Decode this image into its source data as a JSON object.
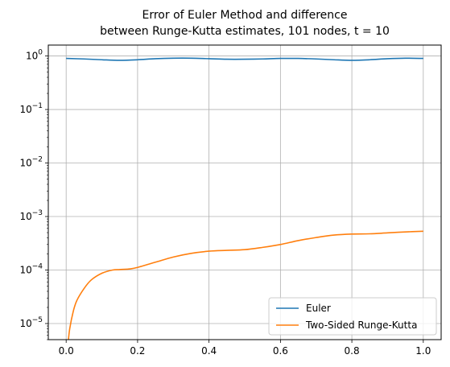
{
  "chart_data": {
    "type": "line",
    "title_lines": [
      "Error of Euler Method and difference",
      "between Runge-Kutta estimates, 101 nodes, t = 10"
    ],
    "xlabel": "",
    "ylabel": "",
    "yscale": "log",
    "xlim": [
      -0.05,
      1.05
    ],
    "ylim": [
      5e-06,
      1.6
    ],
    "xticks": [
      0.0,
      0.2,
      0.4,
      0.6,
      0.8,
      1.0
    ],
    "xtick_labels": [
      "0.0",
      "0.2",
      "0.4",
      "0.6",
      "0.8",
      "1.0"
    ],
    "yticks": [
      1e-05,
      0.0001,
      0.001,
      0.01,
      0.1,
      1
    ],
    "ytick_labels": [
      {
        "base": "10",
        "exp": "−5"
      },
      {
        "base": "10",
        "exp": "−4"
      },
      {
        "base": "10",
        "exp": "−3"
      },
      {
        "base": "10",
        "exp": "−2"
      },
      {
        "base": "10",
        "exp": "−1"
      },
      {
        "base": "10",
        "exp": "0"
      }
    ],
    "grid": true,
    "legend_position": "lower-right",
    "series": [
      {
        "name": "Euler",
        "color": "#1f77b4",
        "x": [
          0.0,
          0.05,
          0.1,
          0.15,
          0.2,
          0.25,
          0.3,
          0.35,
          0.4,
          0.45,
          0.5,
          0.55,
          0.6,
          0.65,
          0.7,
          0.75,
          0.8,
          0.85,
          0.9,
          0.95,
          1.0
        ],
        "y": [
          0.9,
          0.88,
          0.85,
          0.83,
          0.85,
          0.89,
          0.91,
          0.91,
          0.89,
          0.87,
          0.87,
          0.88,
          0.9,
          0.9,
          0.88,
          0.85,
          0.83,
          0.85,
          0.89,
          0.91,
          0.9
        ]
      },
      {
        "name": "Two-Sided Runge-Kutta",
        "color": "#ff7f0e",
        "x": [
          0.005,
          0.01,
          0.02,
          0.03,
          0.05,
          0.07,
          0.1,
          0.13,
          0.15,
          0.18,
          0.2,
          0.25,
          0.3,
          0.35,
          0.4,
          0.45,
          0.5,
          0.55,
          0.6,
          0.65,
          0.7,
          0.75,
          0.8,
          0.85,
          0.9,
          0.95,
          1.0
        ],
        "y": [
          4e-06,
          8e-06,
          1.7e-05,
          2.7e-05,
          4.5e-05,
          6.5e-05,
          8.7e-05,
          0.0001,
          0.000102,
          0.000105,
          0.000112,
          0.00014,
          0.000175,
          0.000205,
          0.000225,
          0.000233,
          0.00024,
          0.000265,
          0.0003,
          0.000355,
          0.000405,
          0.00045,
          0.00047,
          0.000475,
          0.000495,
          0.000515,
          0.00053
        ]
      }
    ]
  }
}
